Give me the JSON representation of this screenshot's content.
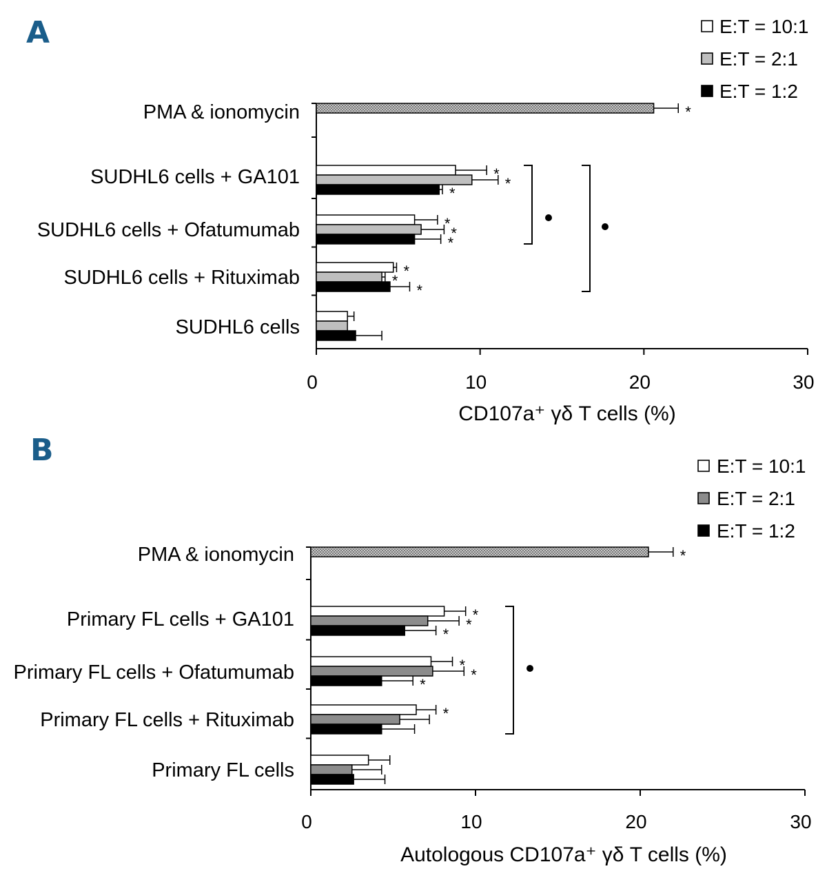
{
  "chart_data": [
    {
      "panel": "A",
      "type": "bar",
      "orientation": "horizontal",
      "xlabel": "CD107a⁺ γδ T cells (%)",
      "xlim": [
        0,
        30
      ],
      "xticks": [
        "0",
        "10",
        "20",
        "30"
      ],
      "legend": {
        "position": "top-right",
        "entries": [
          {
            "name": "E:T = 10:1",
            "color": "#ffffff"
          },
          {
            "name": "E:T = 2:1",
            "color": "#bfbfbf"
          },
          {
            "name": "E:T = 1:2",
            "color": "#000000"
          }
        ]
      },
      "groups": [
        {
          "label": "PMA & ionomycin",
          "bars": [
            {
              "series": "PMA",
              "value": 20.6,
              "err": 1.5,
              "star": true
            }
          ]
        },
        {
          "label": "SUDHL6 cells + GA101",
          "bars": [
            {
              "series": "E:T = 10:1",
              "value": 8.5,
              "err": 1.9,
              "star": true
            },
            {
              "series": "E:T = 2:1",
              "value": 9.5,
              "err": 1.6,
              "star": true
            },
            {
              "series": "E:T = 1:2",
              "value": 7.5,
              "err": 0.2,
              "star": true
            }
          ]
        },
        {
          "label": "SUDHL6 cells +  Ofatumumab",
          "bars": [
            {
              "series": "E:T = 10:1",
              "value": 6.0,
              "err": 1.4,
              "star": true
            },
            {
              "series": "E:T = 2:1",
              "value": 6.4,
              "err": 1.4,
              "star": true
            },
            {
              "series": "E:T = 1:2",
              "value": 6.0,
              "err": 1.6,
              "star": true
            }
          ]
        },
        {
          "label": "SUDHL6 cells +  Rituximab",
          "bars": [
            {
              "series": "E:T = 10:1",
              "value": 4.7,
              "err": 0.2,
              "star": true
            },
            {
              "series": "E:T = 2:1",
              "value": 4.0,
              "err": 0.2,
              "star": true
            },
            {
              "series": "E:T = 1:2",
              "value": 4.5,
              "err": 1.2,
              "star": true
            }
          ]
        },
        {
          "label": "SUDHL6 cells",
          "bars": [
            {
              "series": "E:T = 10:1",
              "value": 1.9,
              "err": 0.4,
              "star": false
            },
            {
              "series": "E:T = 2:1",
              "value": 1.9,
              "err": 0.0,
              "star": false
            },
            {
              "series": "E:T = 1:2",
              "value": 2.4,
              "err": 1.6,
              "star": false
            }
          ]
        }
      ],
      "brackets": [
        {
          "from_group": 1,
          "to_group": 2,
          "marker": "•"
        },
        {
          "from_group": 1,
          "to_group": 3,
          "marker": "•"
        }
      ]
    },
    {
      "panel": "B",
      "type": "bar",
      "orientation": "horizontal",
      "xlabel": "Autologous CD107a⁺ γδ T cells (%)",
      "xlim": [
        0,
        30
      ],
      "xticks": [
        "0",
        "10",
        "20",
        "30"
      ],
      "legend": {
        "position": "top-right",
        "entries": [
          {
            "name": "E:T = 10:1",
            "color": "#ffffff"
          },
          {
            "name": "E:T = 2:1",
            "color": "#8c8c8c"
          },
          {
            "name": "E:T = 1:2",
            "color": "#000000"
          }
        ]
      },
      "groups": [
        {
          "label": "PMA & ionomycin",
          "bars": [
            {
              "series": "PMA",
              "value": 20.5,
              "err": 1.5,
              "star": true
            }
          ]
        },
        {
          "label": "Primary FL cells + GA101",
          "bars": [
            {
              "series": "E:T = 10:1",
              "value": 8.1,
              "err": 1.3,
              "star": true
            },
            {
              "series": "E:T = 2:1",
              "value": 7.1,
              "err": 1.9,
              "star": true
            },
            {
              "series": "E:T = 1:2",
              "value": 5.7,
              "err": 1.9,
              "star": true
            }
          ]
        },
        {
          "label": "Primary FL cells + Ofatumumab",
          "bars": [
            {
              "series": "E:T = 10:1",
              "value": 7.3,
              "err": 1.3,
              "star": true
            },
            {
              "series": "E:T = 2:1",
              "value": 7.4,
              "err": 1.9,
              "star": true
            },
            {
              "series": "E:T = 1:2",
              "value": 4.3,
              "err": 1.9,
              "star": true
            }
          ]
        },
        {
          "label": "Primary FL cells + Rituximab",
          "bars": [
            {
              "series": "E:T = 10:1",
              "value": 6.4,
              "err": 1.2,
              "star": true
            },
            {
              "series": "E:T = 2:1",
              "value": 5.4,
              "err": 1.8,
              "star": false
            },
            {
              "series": "E:T = 1:2",
              "value": 4.3,
              "err": 2.0,
              "star": false
            }
          ]
        },
        {
          "label": "Primary FL cells",
          "bars": [
            {
              "series": "E:T = 10:1",
              "value": 3.5,
              "err": 1.3,
              "star": false
            },
            {
              "series": "E:T = 2:1",
              "value": 2.5,
              "err": 1.8,
              "star": false
            },
            {
              "series": "E:T = 1:2",
              "value": 2.6,
              "err": 1.9,
              "star": false
            }
          ]
        }
      ],
      "brackets": [
        {
          "from_group": 1,
          "to_group": 3,
          "marker": "•"
        }
      ]
    }
  ]
}
